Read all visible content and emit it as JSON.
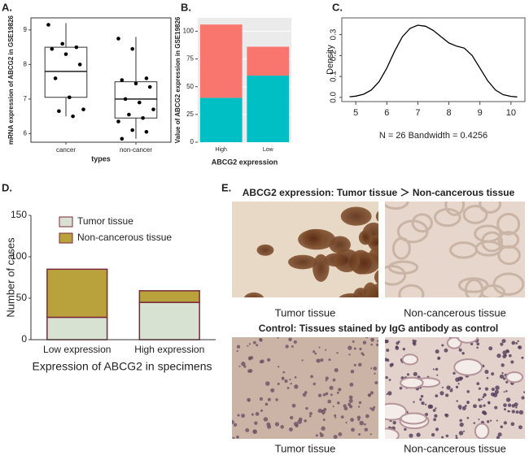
{
  "chart_data": [
    {
      "type": "box",
      "panel": "A.",
      "ylabel": "mRNA expression of ABCG2 in GSE19826",
      "xlabel": "types",
      "categories": [
        "cancer",
        "non-cancer"
      ],
      "boxes": [
        {
          "whisker_low": 6.5,
          "q1": 7.05,
          "median": 7.8,
          "q3": 8.5,
          "whisker_high": 9.2
        },
        {
          "whisker_low": 5.85,
          "q1": 6.45,
          "median": 7.0,
          "q3": 7.5,
          "whisker_high": 8.8
        }
      ],
      "points": [
        [
          9.15,
          8.6,
          8.5,
          8.45,
          8.3,
          8.0,
          7.6,
          7.05,
          6.7,
          6.65,
          6.5
        ],
        [
          8.75,
          8.45,
          7.6,
          7.55,
          7.45,
          7.35,
          7.0,
          6.9,
          6.7,
          6.55,
          6.45,
          6.35,
          6.1,
          6.05,
          5.85
        ]
      ],
      "ylim": [
        5.75,
        9.35
      ],
      "yticks": [
        6,
        7,
        8,
        9
      ]
    },
    {
      "type": "bar",
      "stacked": true,
      "panel": "B.",
      "ylabel": "Value of ABCG2 expression in GSE19826",
      "xlabel": "ABCG2 expression",
      "categories": [
        "High",
        "Low"
      ],
      "series": [
        {
          "color": "#00bfc4",
          "values": [
            40,
            60
          ]
        },
        {
          "color": "#f8766d",
          "values": [
            66,
            26
          ]
        }
      ],
      "ylim": [
        0,
        112
      ],
      "yticks": [
        0,
        25,
        50,
        75,
        100
      ],
      "grid": true
    },
    {
      "type": "line",
      "panel": "C.",
      "ylabel": "Density",
      "xlabel": "N = 26   Bandwidth = 0.4256",
      "x": [
        4.8,
        5.0,
        5.25,
        5.5,
        5.75,
        6.0,
        6.25,
        6.5,
        6.75,
        7.0,
        7.25,
        7.5,
        7.75,
        8.0,
        8.25,
        8.5,
        8.75,
        9.0,
        9.25,
        9.5,
        9.75,
        10.0,
        10.2
      ],
      "values": [
        0.003,
        0.006,
        0.015,
        0.035,
        0.075,
        0.14,
        0.22,
        0.29,
        0.33,
        0.345,
        0.34,
        0.32,
        0.29,
        0.26,
        0.245,
        0.235,
        0.2,
        0.14,
        0.08,
        0.035,
        0.013,
        0.005,
        0.002
      ],
      "xlim": [
        4.55,
        10.45
      ],
      "ylim": [
        -0.02,
        0.38
      ],
      "xticks": [
        5,
        6,
        7,
        8,
        9,
        10
      ],
      "yticks": [
        {
          "value": 0,
          "label": "0.0"
        },
        {
          "value": 0.1,
          "label": "0.1"
        },
        {
          "value": 0.2,
          "label": "0.2"
        },
        {
          "value": 0.3,
          "label": "0.3"
        }
      ],
      "color": "#000000"
    },
    {
      "type": "bar",
      "stacked": true,
      "panel": "D.",
      "ylabel": "Number of cases",
      "xlabel": "Expression of ABCG2 in specimens",
      "categories": [
        "Low expression",
        "High expression"
      ],
      "series": [
        {
          "name": "Tumor tissue",
          "color": "#d8e2d2",
          "values": [
            27,
            45
          ]
        },
        {
          "name": "Non-cancerous tissue",
          "color": "#b9a23c",
          "values": [
            58,
            14
          ]
        }
      ],
      "ylim": [
        0,
        150
      ],
      "yticks": [
        0,
        50,
        100,
        150
      ],
      "legend": "upper left",
      "grid": false
    }
  ],
  "figure_e": {
    "panel": "E.",
    "rows": [
      {
        "title": "ABCG2 expression: Tumor tissue ＞ Non-cancerous tissue",
        "captions": [
          "Tumor tissue",
          "Non-cancerous tissue"
        ]
      },
      {
        "title": "Control: Tissues stained by IgG antibody as control",
        "captions": [
          "Tumor  tissue",
          "Non-cancerous tissue"
        ]
      }
    ]
  }
}
